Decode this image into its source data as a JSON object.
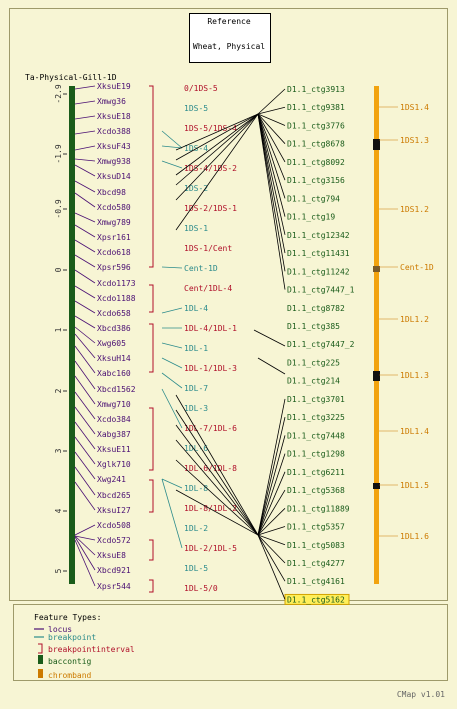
{
  "reference": {
    "line1": "Reference",
    "line2": "Wheat, Physical"
  },
  "map_title": "Ta-Physical-Gill-1D",
  "axis_ticks": [
    {
      "label": "-2.9",
      "value": -2.9
    },
    {
      "label": "-1.9",
      "value": -1.9
    },
    {
      "label": "-0.9",
      "value": -0.9
    },
    {
      "label": "0",
      "value": 0
    },
    {
      "label": "1",
      "value": 1
    },
    {
      "label": "2",
      "value": 2
    },
    {
      "label": "3",
      "value": 3
    },
    {
      "label": "4",
      "value": 4
    },
    {
      "label": "5",
      "value": 5
    }
  ],
  "loci": [
    "XksuE19",
    "Xmwg36",
    "XksuE18",
    "Xcdo388",
    "XksuF43",
    "Xmwg938",
    "XksuD14",
    "Xbcd98",
    "Xcdo580",
    "Xmwg789",
    "Xpsr161",
    "Xcdo618",
    "Xpsr596",
    "Xcdo1173",
    "Xcdo1188",
    "Xcdo658",
    "Xbcd386",
    "Xwg605",
    "XksuH14",
    "Xabc160",
    "Xbcd1562",
    "Xmwg710",
    "Xcdo384",
    "Xabg387",
    "XksuE11",
    "Xglk710",
    "Xwg241",
    "Xbcd265",
    "XksuI27",
    "Xcdo508",
    "Xcdo572",
    "XksuE8",
    "Xbcd921",
    "Xpsr544"
  ],
  "breakpoints": [
    {
      "label": "0/1DS-5",
      "type": "interval"
    },
    {
      "label": "1DS-5",
      "type": "breakpoint"
    },
    {
      "label": "1DS-5/1DS-4",
      "type": "interval"
    },
    {
      "label": "1DS-4",
      "type": "breakpoint"
    },
    {
      "label": "1DS-4/1DS-2",
      "type": "interval"
    },
    {
      "label": "1DS-2",
      "type": "breakpoint"
    },
    {
      "label": "1DS-2/1DS-1",
      "type": "interval"
    },
    {
      "label": "1DS-1",
      "type": "breakpoint"
    },
    {
      "label": "1DS-1/Cent",
      "type": "interval"
    },
    {
      "label": "Cent-1D",
      "type": "breakpoint"
    },
    {
      "label": "Cent/1DL-4",
      "type": "interval"
    },
    {
      "label": "1DL-4",
      "type": "breakpoint"
    },
    {
      "label": "1DL-4/1DL-1",
      "type": "interval"
    },
    {
      "label": "1DL-1",
      "type": "breakpoint"
    },
    {
      "label": "1DL-1/1DL-3",
      "type": "interval"
    },
    {
      "label": "1DL-7",
      "type": "breakpoint"
    },
    {
      "label": "1DL-3",
      "type": "breakpoint"
    },
    {
      "label": "1DL-7/1DL-6",
      "type": "interval"
    },
    {
      "label": "1DL-6",
      "type": "breakpoint"
    },
    {
      "label": "1DL-6/1DL-8",
      "type": "interval"
    },
    {
      "label": "1DL-8",
      "type": "breakpoint"
    },
    {
      "label": "1DL-8/1DL-2",
      "type": "interval"
    },
    {
      "label": "1DL-2",
      "type": "breakpoint"
    },
    {
      "label": "1DL-2/1DL-5",
      "type": "interval"
    },
    {
      "label": "1DL-5",
      "type": "breakpoint"
    },
    {
      "label": "1DL-5/0",
      "type": "interval"
    }
  ],
  "contigs": [
    "D1.1_ctg3913",
    "D1.1_ctg9381",
    "D1.1_ctg3776",
    "D1.1_ctg8678",
    "D1.1_ctg8092",
    "D1.1_ctg3156",
    "D1.1_ctg794",
    "D1.1_ctg19",
    "D1.1_ctg12342",
    "D1.1_ctg11431",
    "D1.1_ctg11242",
    "D1.1_ctg7447_1",
    "D1.1_ctg8782",
    "D1.1_ctg385",
    "D1.1_ctg7447_2",
    "D1.1_ctg225",
    "D1.1_ctg214",
    "D1.1_ctg3701",
    "D1.1_ctg3225",
    "D1.1_ctg7448",
    "D1.1_ctg1298",
    "D1.1_ctg6211",
    "D1.1_ctg5368",
    "D1.1_ctg11889",
    "D1.1_ctg5357",
    "D1.1_ctg5083",
    "D1.1_ctg4277",
    "D1.1_ctg4161",
    "D1.1_ctg5162"
  ],
  "highlighted_contig": "D1.1_ctg5162",
  "chrombands": [
    "1DS1.4",
    "1DS1.3",
    "1DS1.2",
    "Cent-1D",
    "1DL1.2",
    "1DL1.3",
    "1DL1.4",
    "1DL1.5",
    "1DL1.6"
  ],
  "legend": {
    "title": "Feature Types:",
    "items": [
      {
        "label": "locus",
        "color": "#4a0f73"
      },
      {
        "label": "breakpoint",
        "color": "#2c8b8b"
      },
      {
        "label": "breakpointinterval",
        "color": "#b0102a"
      },
      {
        "label": "baccontig",
        "color": "#1a5c1a"
      },
      {
        "label": "chromband",
        "color": "#cc7a00"
      }
    ]
  },
  "version": "CMap v1.01",
  "colors": {
    "locus": "#4a0f73",
    "breakpoint": "#2c8b8b",
    "interval": "#b0102a",
    "contig": "#1a5c1a",
    "band": "#f2a30f",
    "band_label": "#cc7a00"
  }
}
